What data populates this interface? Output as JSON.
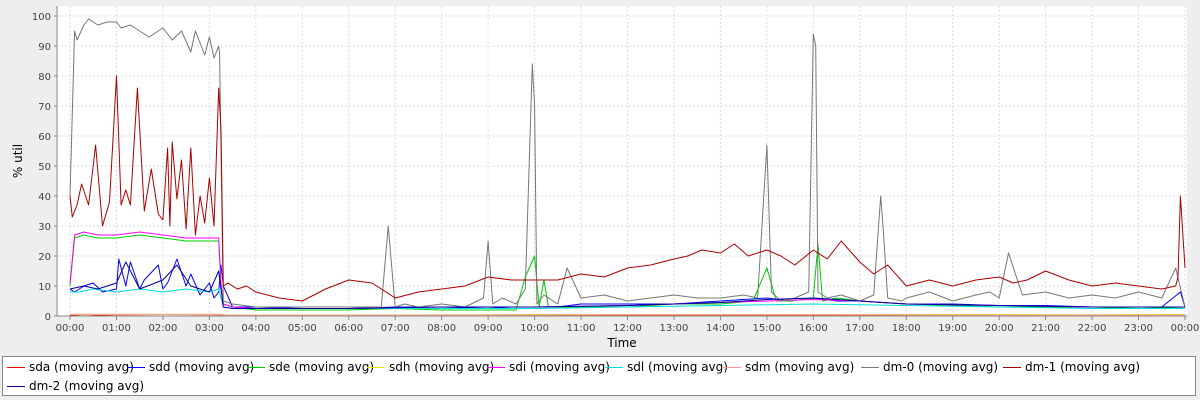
{
  "chart_data": {
    "type": "line",
    "xlabel": "Time",
    "ylabel": "% util",
    "ylim": [
      0,
      100
    ],
    "xlim": [
      "00:00",
      "24:00"
    ],
    "y_ticks": [
      "0",
      "10",
      "20",
      "30",
      "40",
      "50",
      "60",
      "70",
      "80",
      "90",
      "100"
    ],
    "x_ticks": [
      "00:00",
      "01:00",
      "02:00",
      "03:00",
      "04:00",
      "05:00",
      "06:00",
      "07:00",
      "08:00",
      "09:00",
      "10:00",
      "11:00",
      "12:00",
      "13:00",
      "14:00",
      "15:00",
      "16:00",
      "17:00",
      "18:00",
      "19:00",
      "20:00",
      "21:00",
      "22:00",
      "23:00",
      "00:00"
    ],
    "grid": true,
    "legend_position": "bottom",
    "background_color": "#ffffff",
    "grid_color": "#dddddd",
    "series": [
      {
        "name": "sda (moving avg)",
        "color": "#ff0000",
        "x": [
          0.0,
          0.3,
          0.6,
          1.0,
          2.0,
          3.2,
          3.4,
          4.0,
          8.0,
          12.0,
          16.0,
          20.0,
          24.0
        ],
        "y": [
          0.2,
          0.5,
          0.3,
          0.4,
          0.5,
          0.4,
          0.2,
          0.2,
          0.3,
          0.2,
          0.3,
          0.2,
          0.2
        ]
      },
      {
        "name": "sdd (moving avg)",
        "color": "#0000ff",
        "x": [
          0.0,
          0.1,
          0.3,
          0.5,
          0.7,
          1.0,
          1.05,
          1.2,
          1.3,
          1.5,
          1.6,
          1.9,
          2.0,
          2.1,
          2.3,
          2.5,
          2.6,
          2.8,
          3.0,
          3.1,
          3.2,
          3.25,
          3.3,
          3.5,
          4.0,
          5.0,
          6.0,
          7.0,
          8.0,
          9.0,
          9.5,
          10.0,
          10.5,
          11.0,
          12.0,
          13.0,
          14.0,
          14.5,
          15.0,
          15.5,
          16.0,
          16.5,
          17.0,
          18.0,
          19.0,
          20.0,
          21.0,
          22.0,
          23.0,
          23.5,
          23.9,
          24.0
        ],
        "y": [
          9,
          8,
          10,
          11,
          8,
          9,
          19,
          10,
          18,
          9,
          12,
          17,
          9,
          11,
          19,
          10,
          14,
          7,
          11,
          6,
          8,
          17,
          10,
          3,
          3,
          2.5,
          2.5,
          3,
          3,
          2.5,
          3,
          3,
          3,
          4,
          4,
          4,
          5,
          5.5,
          6,
          5,
          6,
          5,
          5,
          4,
          4,
          3.5,
          3.5,
          3,
          3,
          3,
          8,
          3
        ]
      },
      {
        "name": "sde (moving avg)",
        "color": "#00cc00",
        "x": [
          0.0,
          0.1,
          0.3,
          0.6,
          1.0,
          1.5,
          2.0,
          2.5,
          3.0,
          3.2,
          3.25,
          3.3,
          3.5,
          4.0,
          5.0,
          6.0,
          7.0,
          8.0,
          9.0,
          9.6,
          9.8,
          10.0,
          10.1,
          10.2,
          10.3,
          11.0,
          12.0,
          13.0,
          14.0,
          14.7,
          15.0,
          15.2,
          15.5,
          16.0,
          16.1,
          16.2,
          16.5,
          17.0,
          18.0,
          19.0,
          20.0,
          21.0,
          22.0,
          23.0,
          24.0
        ],
        "y": [
          10,
          26,
          27,
          26,
          26,
          27,
          26,
          25,
          25,
          25,
          10,
          4,
          3,
          2,
          2,
          2,
          2.5,
          2,
          2,
          2,
          13,
          20,
          3,
          12,
          3,
          3,
          3,
          4,
          4,
          5,
          16,
          5,
          5,
          6,
          24,
          5,
          6,
          5,
          4,
          3.5,
          3,
          3,
          3,
          2.5,
          3
        ]
      },
      {
        "name": "sdh (moving avg)",
        "color": "#e8e800",
        "x": [
          0.0,
          1.0,
          3.2,
          3.4,
          6.0,
          10.0,
          14.0,
          18.0,
          22.0,
          24.0
        ],
        "y": [
          0.5,
          0.5,
          0.5,
          0.3,
          0.3,
          0.5,
          0.5,
          0.5,
          0.4,
          0.5
        ]
      },
      {
        "name": "sdi (moving avg)",
        "color": "#ff00ff",
        "x": [
          0.0,
          0.1,
          0.3,
          0.6,
          1.0,
          1.5,
          2.0,
          2.5,
          3.0,
          3.2,
          3.25,
          3.3,
          3.5,
          4.0,
          6.0,
          8.0,
          10.0,
          12.0,
          14.0,
          15.0,
          16.0,
          17.0,
          18.0,
          20.0,
          22.0,
          24.0
        ],
        "y": [
          11,
          27,
          28,
          27,
          27,
          28,
          27,
          26,
          26,
          26,
          11,
          4,
          3,
          2.5,
          2.5,
          3,
          3,
          3.5,
          4.5,
          5,
          5.5,
          5,
          4,
          3.5,
          3,
          3
        ]
      },
      {
        "name": "sdl (moving avg)",
        "color": "#00dddd",
        "x": [
          0.0,
          0.2,
          0.5,
          1.0,
          1.5,
          2.0,
          2.5,
          3.0,
          3.2,
          3.3,
          3.5,
          4.0,
          6.0,
          8.0,
          10.0,
          12.0,
          14.0,
          16.0,
          18.0,
          20.0,
          22.0,
          24.0
        ],
        "y": [
          8,
          8,
          9,
          8,
          9,
          8,
          9,
          8,
          9,
          3,
          2.5,
          2.5,
          2.5,
          2.5,
          2.5,
          3,
          3.5,
          4,
          3.5,
          3,
          2.5,
          2.5
        ]
      },
      {
        "name": "sdm (moving avg)",
        "color": "#ff9999",
        "x": [
          0.0,
          1.0,
          3.2,
          3.4,
          8.0,
          12.0,
          16.0,
          20.0,
          24.0
        ],
        "y": [
          0.6,
          0.6,
          0.6,
          0.3,
          0.3,
          0.4,
          0.4,
          0.3,
          0.3
        ]
      },
      {
        "name": "dm-0 (moving avg)",
        "color": "#777777",
        "x": [
          0.0,
          0.1,
          0.15,
          0.3,
          0.4,
          0.6,
          0.8,
          1.0,
          1.1,
          1.3,
          1.5,
          1.7,
          2.0,
          2.2,
          2.4,
          2.6,
          2.7,
          2.9,
          3.0,
          3.1,
          3.2,
          3.22,
          3.3,
          3.5,
          4.0,
          5.0,
          6.0,
          6.7,
          6.85,
          7.0,
          7.2,
          7.5,
          8.0,
          8.5,
          8.9,
          9.0,
          9.1,
          9.3,
          9.6,
          9.8,
          9.95,
          10.0,
          10.05,
          10.2,
          10.5,
          10.7,
          11.0,
          11.5,
          12.0,
          12.5,
          13.0,
          13.5,
          14.0,
          14.5,
          14.8,
          15.0,
          15.1,
          15.3,
          15.6,
          15.9,
          16.0,
          16.05,
          16.1,
          16.3,
          16.6,
          17.0,
          17.3,
          17.45,
          17.5,
          17.6,
          17.9,
          18.0,
          18.5,
          19.0,
          19.5,
          19.8,
          20.0,
          20.2,
          20.5,
          21.0,
          21.5,
          22.0,
          22.5,
          23.0,
          23.5,
          23.8,
          24.0
        ],
        "y": [
          40,
          95,
          92,
          97,
          99,
          97,
          98,
          98,
          96,
          97,
          95,
          93,
          96,
          92,
          95,
          88,
          95,
          87,
          93,
          86,
          90,
          87,
          5,
          4,
          3,
          3,
          3,
          3,
          30,
          3,
          4,
          3,
          4,
          3,
          6,
          25,
          4,
          6,
          4,
          9,
          84,
          70,
          4,
          7,
          4,
          16,
          6,
          7,
          5,
          6,
          7,
          6,
          6,
          7,
          6,
          57,
          8,
          5,
          6,
          8,
          94,
          90,
          8,
          6,
          7,
          5,
          7,
          40,
          30,
          6,
          5,
          6,
          8,
          5,
          7,
          8,
          6,
          21,
          7,
          8,
          6,
          7,
          6,
          8,
          6,
          16,
          3
        ]
      },
      {
        "name": "dm-1 (moving avg)",
        "color": "#aa0000",
        "x": [
          0.0,
          0.05,
          0.15,
          0.25,
          0.4,
          0.55,
          0.7,
          0.85,
          1.0,
          1.1,
          1.2,
          1.3,
          1.45,
          1.6,
          1.75,
          1.9,
          2.0,
          2.1,
          2.15,
          2.2,
          2.3,
          2.4,
          2.5,
          2.6,
          2.7,
          2.8,
          2.9,
          3.0,
          3.1,
          3.2,
          3.25,
          3.3,
          3.4,
          3.6,
          3.8,
          4.0,
          4.5,
          5.0,
          5.5,
          6.0,
          6.5,
          7.0,
          7.5,
          8.0,
          8.5,
          9.0,
          9.5,
          10.0,
          10.5,
          11.0,
          11.5,
          12.0,
          12.5,
          13.0,
          13.3,
          13.6,
          14.0,
          14.3,
          14.6,
          15.0,
          15.3,
          15.6,
          16.0,
          16.3,
          16.6,
          17.0,
          17.3,
          17.6,
          18.0,
          18.5,
          19.0,
          19.5,
          20.0,
          20.3,
          20.6,
          21.0,
          21.5,
          22.0,
          22.5,
          23.0,
          23.5,
          23.8,
          23.85,
          23.9,
          24.0
        ],
        "y": [
          40,
          33,
          37,
          44,
          37,
          57,
          30,
          38,
          80,
          37,
          42,
          37,
          76,
          35,
          49,
          34,
          32,
          56,
          30,
          58,
          39,
          52,
          29,
          56,
          27,
          40,
          31,
          46,
          30,
          76,
          62,
          10,
          11,
          9,
          10,
          8,
          6,
          5,
          9,
          12,
          11,
          6,
          8,
          9,
          10,
          13,
          12,
          12,
          12,
          14,
          13,
          16,
          17,
          19,
          20,
          22,
          21,
          24,
          20,
          22,
          20,
          17,
          22,
          19,
          25,
          18,
          14,
          17,
          10,
          12,
          10,
          12,
          13,
          11,
          12,
          15,
          12,
          10,
          11,
          10,
          9,
          10,
          13,
          40,
          16
        ]
      },
      {
        "name": "dm-2 (moving avg)",
        "color": "#000099",
        "x": [
          0.0,
          0.3,
          0.6,
          1.0,
          1.2,
          1.5,
          2.0,
          2.3,
          2.6,
          3.0,
          3.2,
          3.3,
          3.5,
          4.0,
          6.0,
          8.0,
          10.0,
          12.0,
          14.0,
          15.0,
          16.0,
          17.0,
          18.0,
          20.0,
          22.0,
          24.0
        ],
        "y": [
          9,
          10,
          9,
          11,
          18,
          9,
          12,
          17,
          10,
          8,
          15,
          3,
          2.5,
          2.5,
          2.5,
          3,
          3,
          3.5,
          4.5,
          5.5,
          6,
          5,
          4,
          3.5,
          3,
          3
        ]
      }
    ]
  }
}
